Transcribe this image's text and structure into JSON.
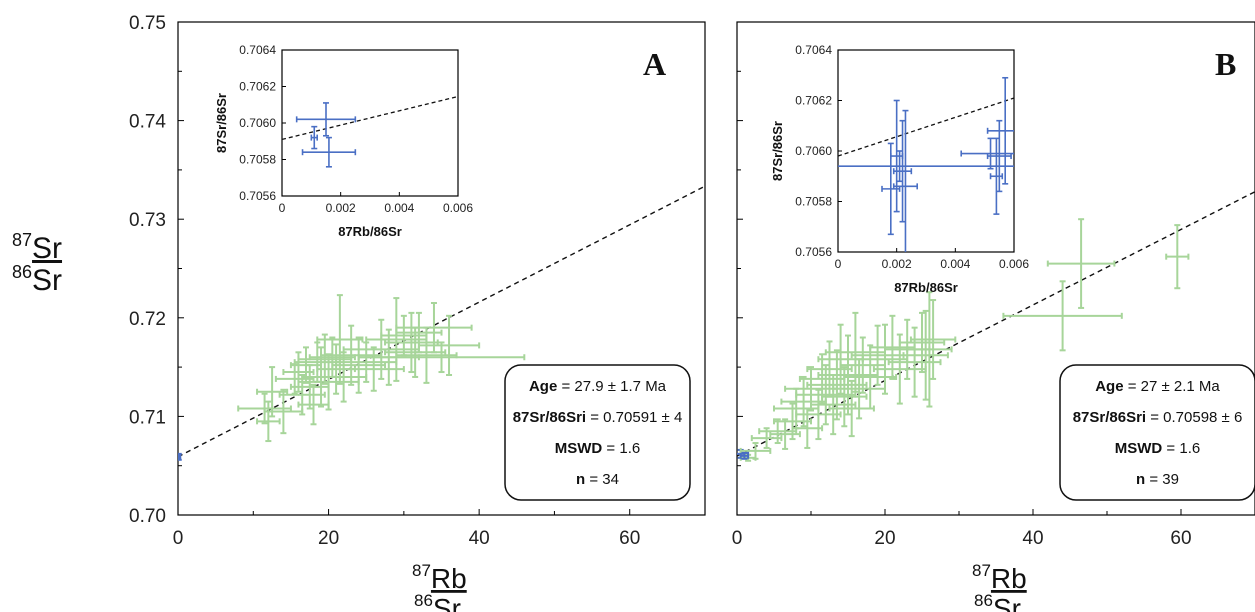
{
  "figure": {
    "y_label": {
      "top_sup": "87",
      "top": "Sr",
      "bottom_sup": "86",
      "bottom": "Sr"
    },
    "x_label": {
      "top_sup": "87",
      "top": "Rb",
      "bottom_sup": "86",
      "bottom": "Sr"
    },
    "colors": {
      "main_points": "#a7d59a",
      "inset_points": "#4a6fc4",
      "line": "#111111",
      "frame": "#000000"
    }
  },
  "chart_data": [
    {
      "type": "scatter",
      "panel_label": "A",
      "xlim": [
        0,
        70
      ],
      "ylim": [
        0.7,
        0.75
      ],
      "xticks": [
        "0",
        "20",
        "40",
        "60"
      ],
      "yticks": [
        "0.70",
        "0.71",
        "0.72",
        "0.73",
        "0.74",
        "0.75"
      ],
      "regression_line": {
        "intercept": 0.70591,
        "slope": 0.000392,
        "style": "dashed"
      },
      "info_box": {
        "age_label": "Age",
        "age_value": "= 27.9 ± 1.7 Ma",
        "ratio_label": "87Sr/86Sri",
        "ratio_value": "= 0.70591 ± 4",
        "mswd_label": "MSWD",
        "mswd_value": "= 1.6",
        "n_label": "n",
        "n_value": "= 34"
      },
      "points": [
        {
          "x": 0.1,
          "y": 0.7059,
          "xerr": 0.2,
          "yerr": 0.0003
        },
        {
          "x": 11.5,
          "y": 0.7108,
          "xerr": 3.5,
          "yerr": 0.0015
        },
        {
          "x": 12,
          "y": 0.7095,
          "xerr": 1.5,
          "yerr": 0.002
        },
        {
          "x": 12.5,
          "y": 0.7125,
          "xerr": 2,
          "yerr": 0.0025
        },
        {
          "x": 14,
          "y": 0.7105,
          "xerr": 2.5,
          "yerr": 0.0022
        },
        {
          "x": 15.5,
          "y": 0.7138,
          "xerr": 2.5,
          "yerr": 0.0015
        },
        {
          "x": 16,
          "y": 0.7145,
          "xerr": 2,
          "yerr": 0.002
        },
        {
          "x": 16.5,
          "y": 0.7122,
          "xerr": 3,
          "yerr": 0.002
        },
        {
          "x": 17,
          "y": 0.7152,
          "xerr": 2,
          "yerr": 0.0018
        },
        {
          "x": 17.5,
          "y": 0.713,
          "xerr": 2.5,
          "yerr": 0.0022
        },
        {
          "x": 18,
          "y": 0.7112,
          "xerr": 2,
          "yerr": 0.002
        },
        {
          "x": 18.5,
          "y": 0.7155,
          "xerr": 3,
          "yerr": 0.002
        },
        {
          "x": 19,
          "y": 0.714,
          "xerr": 2.5,
          "yerr": 0.003
        },
        {
          "x": 19.5,
          "y": 0.7158,
          "xerr": 3.5,
          "yerr": 0.0025
        },
        {
          "x": 20,
          "y": 0.7135,
          "xerr": 4,
          "yerr": 0.0028
        },
        {
          "x": 20.5,
          "y": 0.716,
          "xerr": 3,
          "yerr": 0.002
        },
        {
          "x": 21,
          "y": 0.7148,
          "xerr": 2.5,
          "yerr": 0.0025
        },
        {
          "x": 21.5,
          "y": 0.7178,
          "xerr": 3,
          "yerr": 0.0045
        },
        {
          "x": 22,
          "y": 0.714,
          "xerr": 3,
          "yerr": 0.0025
        },
        {
          "x": 23,
          "y": 0.7162,
          "xerr": 4,
          "yerr": 0.003
        },
        {
          "x": 24,
          "y": 0.7152,
          "xerr": 3.5,
          "yerr": 0.0028
        },
        {
          "x": 25,
          "y": 0.7155,
          "xerr": 4,
          "yerr": 0.002
        },
        {
          "x": 26,
          "y": 0.7148,
          "xerr": 4,
          "yerr": 0.0022
        },
        {
          "x": 27,
          "y": 0.7168,
          "xerr": 5,
          "yerr": 0.003
        },
        {
          "x": 28,
          "y": 0.716,
          "xerr": 4,
          "yerr": 0.0028
        },
        {
          "x": 29,
          "y": 0.7178,
          "xerr": 4,
          "yerr": 0.0042
        },
        {
          "x": 30,
          "y": 0.7182,
          "xerr": 3,
          "yerr": 0.002
        },
        {
          "x": 31,
          "y": 0.7175,
          "xerr": 3.5,
          "yerr": 0.003
        },
        {
          "x": 31.5,
          "y": 0.7165,
          "xerr": 4,
          "yerr": 0.0025
        },
        {
          "x": 32,
          "y": 0.7185,
          "xerr": 3,
          "yerr": 0.002
        },
        {
          "x": 33,
          "y": 0.7162,
          "xerr": 4,
          "yerr": 0.0028
        },
        {
          "x": 34,
          "y": 0.719,
          "xerr": 5,
          "yerr": 0.0025
        },
        {
          "x": 35,
          "y": 0.716,
          "xerr": 11,
          "yerr": 0.0015
        },
        {
          "x": 36,
          "y": 0.7172,
          "xerr": 4,
          "yerr": 0.003
        }
      ],
      "inset": {
        "xlabel": "87Rb/86Sr",
        "ylabel": "87Sr/86Sr",
        "xlim": [
          0,
          0.006
        ],
        "ylim": [
          0.7056,
          0.7064
        ],
        "xticks": [
          "0",
          "0.002",
          "0.004",
          "0.006"
        ],
        "yticks": [
          "0.7056",
          "0.7058",
          "0.7060",
          "0.7062",
          "0.7064"
        ],
        "regression_line": {
          "intercept": 0.70591,
          "slope": 0.0392
        },
        "points": [
          {
            "x": 0.0015,
            "y": 0.70602,
            "xerr": 0.001,
            "yerr": 9e-05
          },
          {
            "x": 0.0011,
            "y": 0.70592,
            "xerr": 0.0001,
            "yerr": 6e-05
          },
          {
            "x": 0.0016,
            "y": 0.70584,
            "xerr": 0.0009,
            "yerr": 8e-05
          }
        ]
      }
    },
    {
      "type": "scatter",
      "panel_label": "B",
      "xlim": [
        0,
        70
      ],
      "ylim": [
        0.7,
        0.75
      ],
      "xticks": [
        "0",
        "20",
        "40",
        "60"
      ],
      "yticks": [
        "0.70",
        "0.71",
        "0.72",
        "0.73",
        "0.74",
        "0.75"
      ],
      "regression_line": {
        "intercept": 0.70598,
        "slope": 0.000383,
        "style": "dashed"
      },
      "info_box": {
        "age_label": "Age",
        "age_value": "= 27 ± 2.1 Ma",
        "ratio_label": "87Sr/86Sri",
        "ratio_value": "= 0.70598 ± 6",
        "mswd_label": "MSWD",
        "mswd_value": "= 1.6",
        "n_label": "n",
        "n_value": "= 39"
      },
      "points": [
        {
          "x": 0.5,
          "y": 0.7062,
          "xerr": 1,
          "yerr": 0.0004
        },
        {
          "x": 1.5,
          "y": 0.7058,
          "xerr": 1,
          "yerr": 0.0003
        },
        {
          "x": 2.5,
          "y": 0.7065,
          "xerr": 2,
          "yerr": 0.0008
        },
        {
          "x": 4,
          "y": 0.7078,
          "xerr": 2,
          "yerr": 0.001
        },
        {
          "x": 5.5,
          "y": 0.7085,
          "xerr": 2.5,
          "yerr": 0.0012
        },
        {
          "x": 6.5,
          "y": 0.7082,
          "xerr": 2,
          "yerr": 0.0015
        },
        {
          "x": 7.5,
          "y": 0.7095,
          "xerr": 2.5,
          "yerr": 0.0018
        },
        {
          "x": 8,
          "y": 0.7108,
          "xerr": 3,
          "yerr": 0.002
        },
        {
          "x": 9,
          "y": 0.7115,
          "xerr": 3,
          "yerr": 0.0025
        },
        {
          "x": 9.5,
          "y": 0.7088,
          "xerr": 2,
          "yerr": 0.002
        },
        {
          "x": 10,
          "y": 0.7128,
          "xerr": 3.5,
          "yerr": 0.0022
        },
        {
          "x": 11,
          "y": 0.7102,
          "xerr": 3,
          "yerr": 0.0025
        },
        {
          "x": 11.5,
          "y": 0.7138,
          "xerr": 3,
          "yerr": 0.0025
        },
        {
          "x": 12,
          "y": 0.7122,
          "xerr": 4,
          "yerr": 0.003
        },
        {
          "x": 12.5,
          "y": 0.7148,
          "xerr": 3,
          "yerr": 0.0028
        },
        {
          "x": 13,
          "y": 0.7112,
          "xerr": 3,
          "yerr": 0.003
        },
        {
          "x": 13.5,
          "y": 0.7132,
          "xerr": 4,
          "yerr": 0.0035
        },
        {
          "x": 14,
          "y": 0.7158,
          "xerr": 3,
          "yerr": 0.0035
        },
        {
          "x": 14.5,
          "y": 0.712,
          "xerr": 3,
          "yerr": 0.003
        },
        {
          "x": 15,
          "y": 0.7142,
          "xerr": 4,
          "yerr": 0.004
        },
        {
          "x": 15.5,
          "y": 0.7108,
          "xerr": 3,
          "yerr": 0.0028
        },
        {
          "x": 16,
          "y": 0.7165,
          "xerr": 4,
          "yerr": 0.004
        },
        {
          "x": 16.5,
          "y": 0.7128,
          "xerr": 3.5,
          "yerr": 0.003
        },
        {
          "x": 17,
          "y": 0.7152,
          "xerr": 3,
          "yerr": 0.0028
        },
        {
          "x": 18,
          "y": 0.714,
          "xerr": 3.5,
          "yerr": 0.0032
        },
        {
          "x": 19,
          "y": 0.7162,
          "xerr": 3.5,
          "yerr": 0.003
        },
        {
          "x": 20,
          "y": 0.7158,
          "xerr": 3,
          "yerr": 0.0035
        },
        {
          "x": 21,
          "y": 0.717,
          "xerr": 3,
          "yerr": 0.0032
        },
        {
          "x": 22,
          "y": 0.7148,
          "xerr": 3.5,
          "yerr": 0.0035
        },
        {
          "x": 23,
          "y": 0.7168,
          "xerr": 3,
          "yerr": 0.003
        },
        {
          "x": 24,
          "y": 0.7155,
          "xerr": 3.5,
          "yerr": 0.0035
        },
        {
          "x": 25,
          "y": 0.7175,
          "xerr": 3,
          "yerr": 0.003
        },
        {
          "x": 25.5,
          "y": 0.7162,
          "xerr": 3,
          "yerr": 0.0045
        },
        {
          "x": 26,
          "y": 0.7168,
          "xerr": 3,
          "yerr": 0.0058
        },
        {
          "x": 26.5,
          "y": 0.7178,
          "xerr": 3,
          "yerr": 0.004
        },
        {
          "x": 44,
          "y": 0.7202,
          "xerr": 8,
          "yerr": 0.0035
        },
        {
          "x": 46.5,
          "y": 0.7255,
          "xerr": 4.5,
          "yerr": 0.0045
        },
        {
          "x": 59.5,
          "y": 0.7262,
          "xerr": 1.5,
          "yerr": 0.0032
        },
        {
          "x": 1,
          "y": 0.706,
          "xerr": 0.5,
          "yerr": 0.0003
        }
      ],
      "inset": {
        "xlabel": "87Rb/86Sr",
        "ylabel": "87Sr/86Sr",
        "xlim": [
          0,
          0.006
        ],
        "ylim": [
          0.7056,
          0.7064
        ],
        "xticks": [
          "0",
          "0.002",
          "0.004",
          "0.006"
        ],
        "yticks": [
          "0.7056",
          "0.7058",
          "0.7060",
          "0.7062",
          "0.7064"
        ],
        "regression_line": {
          "intercept": 0.70598,
          "slope": 0.0383
        },
        "points": [
          {
            "x": 0.0018,
            "y": 0.70585,
            "xerr": 0.0003,
            "yerr": 0.00018
          },
          {
            "x": 0.002,
            "y": 0.70598,
            "xerr": 0.0002,
            "yerr": 0.00022
          },
          {
            "x": 0.0022,
            "y": 0.70592,
            "xerr": 0.0003,
            "yerr": 0.0002
          },
          {
            "x": 0.0023,
            "y": 0.70586,
            "xerr": 0.0004,
            "yerr": 0.0003
          },
          {
            "x": 0.0021,
            "y": 0.70594,
            "xerr": 0.004,
            "yerr": 6e-05
          },
          {
            "x": 0.0052,
            "y": 0.70599,
            "xerr": 0.001,
            "yerr": 6e-05
          },
          {
            "x": 0.0055,
            "y": 0.70598,
            "xerr": 0.0004,
            "yerr": 0.00014
          },
          {
            "x": 0.0057,
            "y": 0.70608,
            "xerr": 0.0006,
            "yerr": 0.00021
          },
          {
            "x": 0.0054,
            "y": 0.7059,
            "xerr": 0.0002,
            "yerr": 0.00015
          }
        ]
      }
    }
  ]
}
